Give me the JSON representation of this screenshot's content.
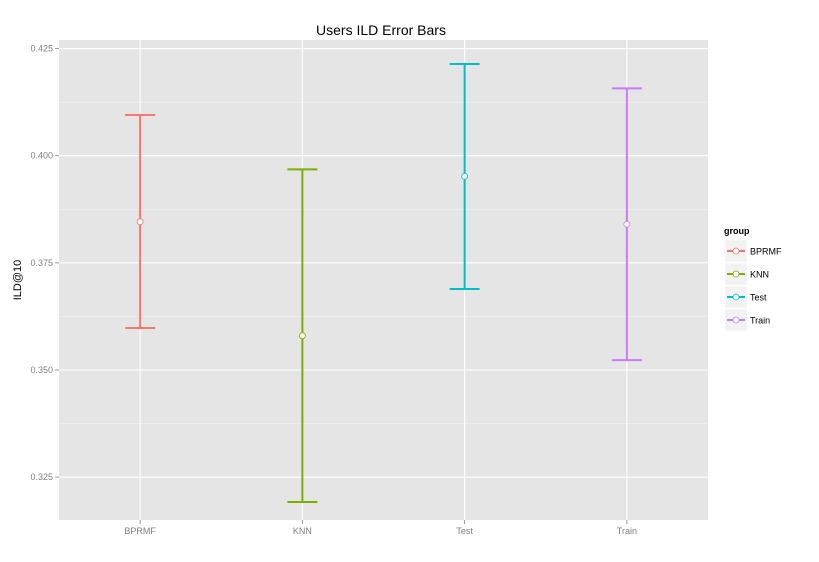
{
  "chart_data": {
    "type": "errorbar",
    "title": "Users ILD Error Bars",
    "xlabel": "",
    "ylabel": "ILD@10",
    "categories": [
      "BPRMF",
      "KNN",
      "Test",
      "Train"
    ],
    "ylim": [
      0.315,
      0.427
    ],
    "yticks": [
      0.325,
      0.35,
      0.375,
      0.4,
      0.425
    ],
    "ytick_labels": [
      "0.325",
      "0.350",
      "0.375",
      "0.400",
      "0.425"
    ],
    "grid": true,
    "legend": {
      "title": "group",
      "placement": "right",
      "entries": [
        "BPRMF",
        "KNN",
        "Test",
        "Train"
      ]
    },
    "series": [
      {
        "name": "BPRMF",
        "mean": 0.3846,
        "lower": 0.3598,
        "upper": 0.4095,
        "color": "#F8766D"
      },
      {
        "name": "KNN",
        "mean": 0.358,
        "lower": 0.3192,
        "upper": 0.3968,
        "color": "#7CAE00"
      },
      {
        "name": "Test",
        "mean": 0.3952,
        "lower": 0.3689,
        "upper": 0.4214,
        "color": "#00BFC4"
      },
      {
        "name": "Train",
        "mean": 0.384,
        "lower": 0.3523,
        "upper": 0.4157,
        "color": "#C77CFF"
      }
    ]
  },
  "colors": {
    "panel_background": "#E5E5E5",
    "grid_major": "#FFFFFF",
    "grid_minor": "#F2F2F2",
    "tick_text": "#7F7F7F"
  }
}
